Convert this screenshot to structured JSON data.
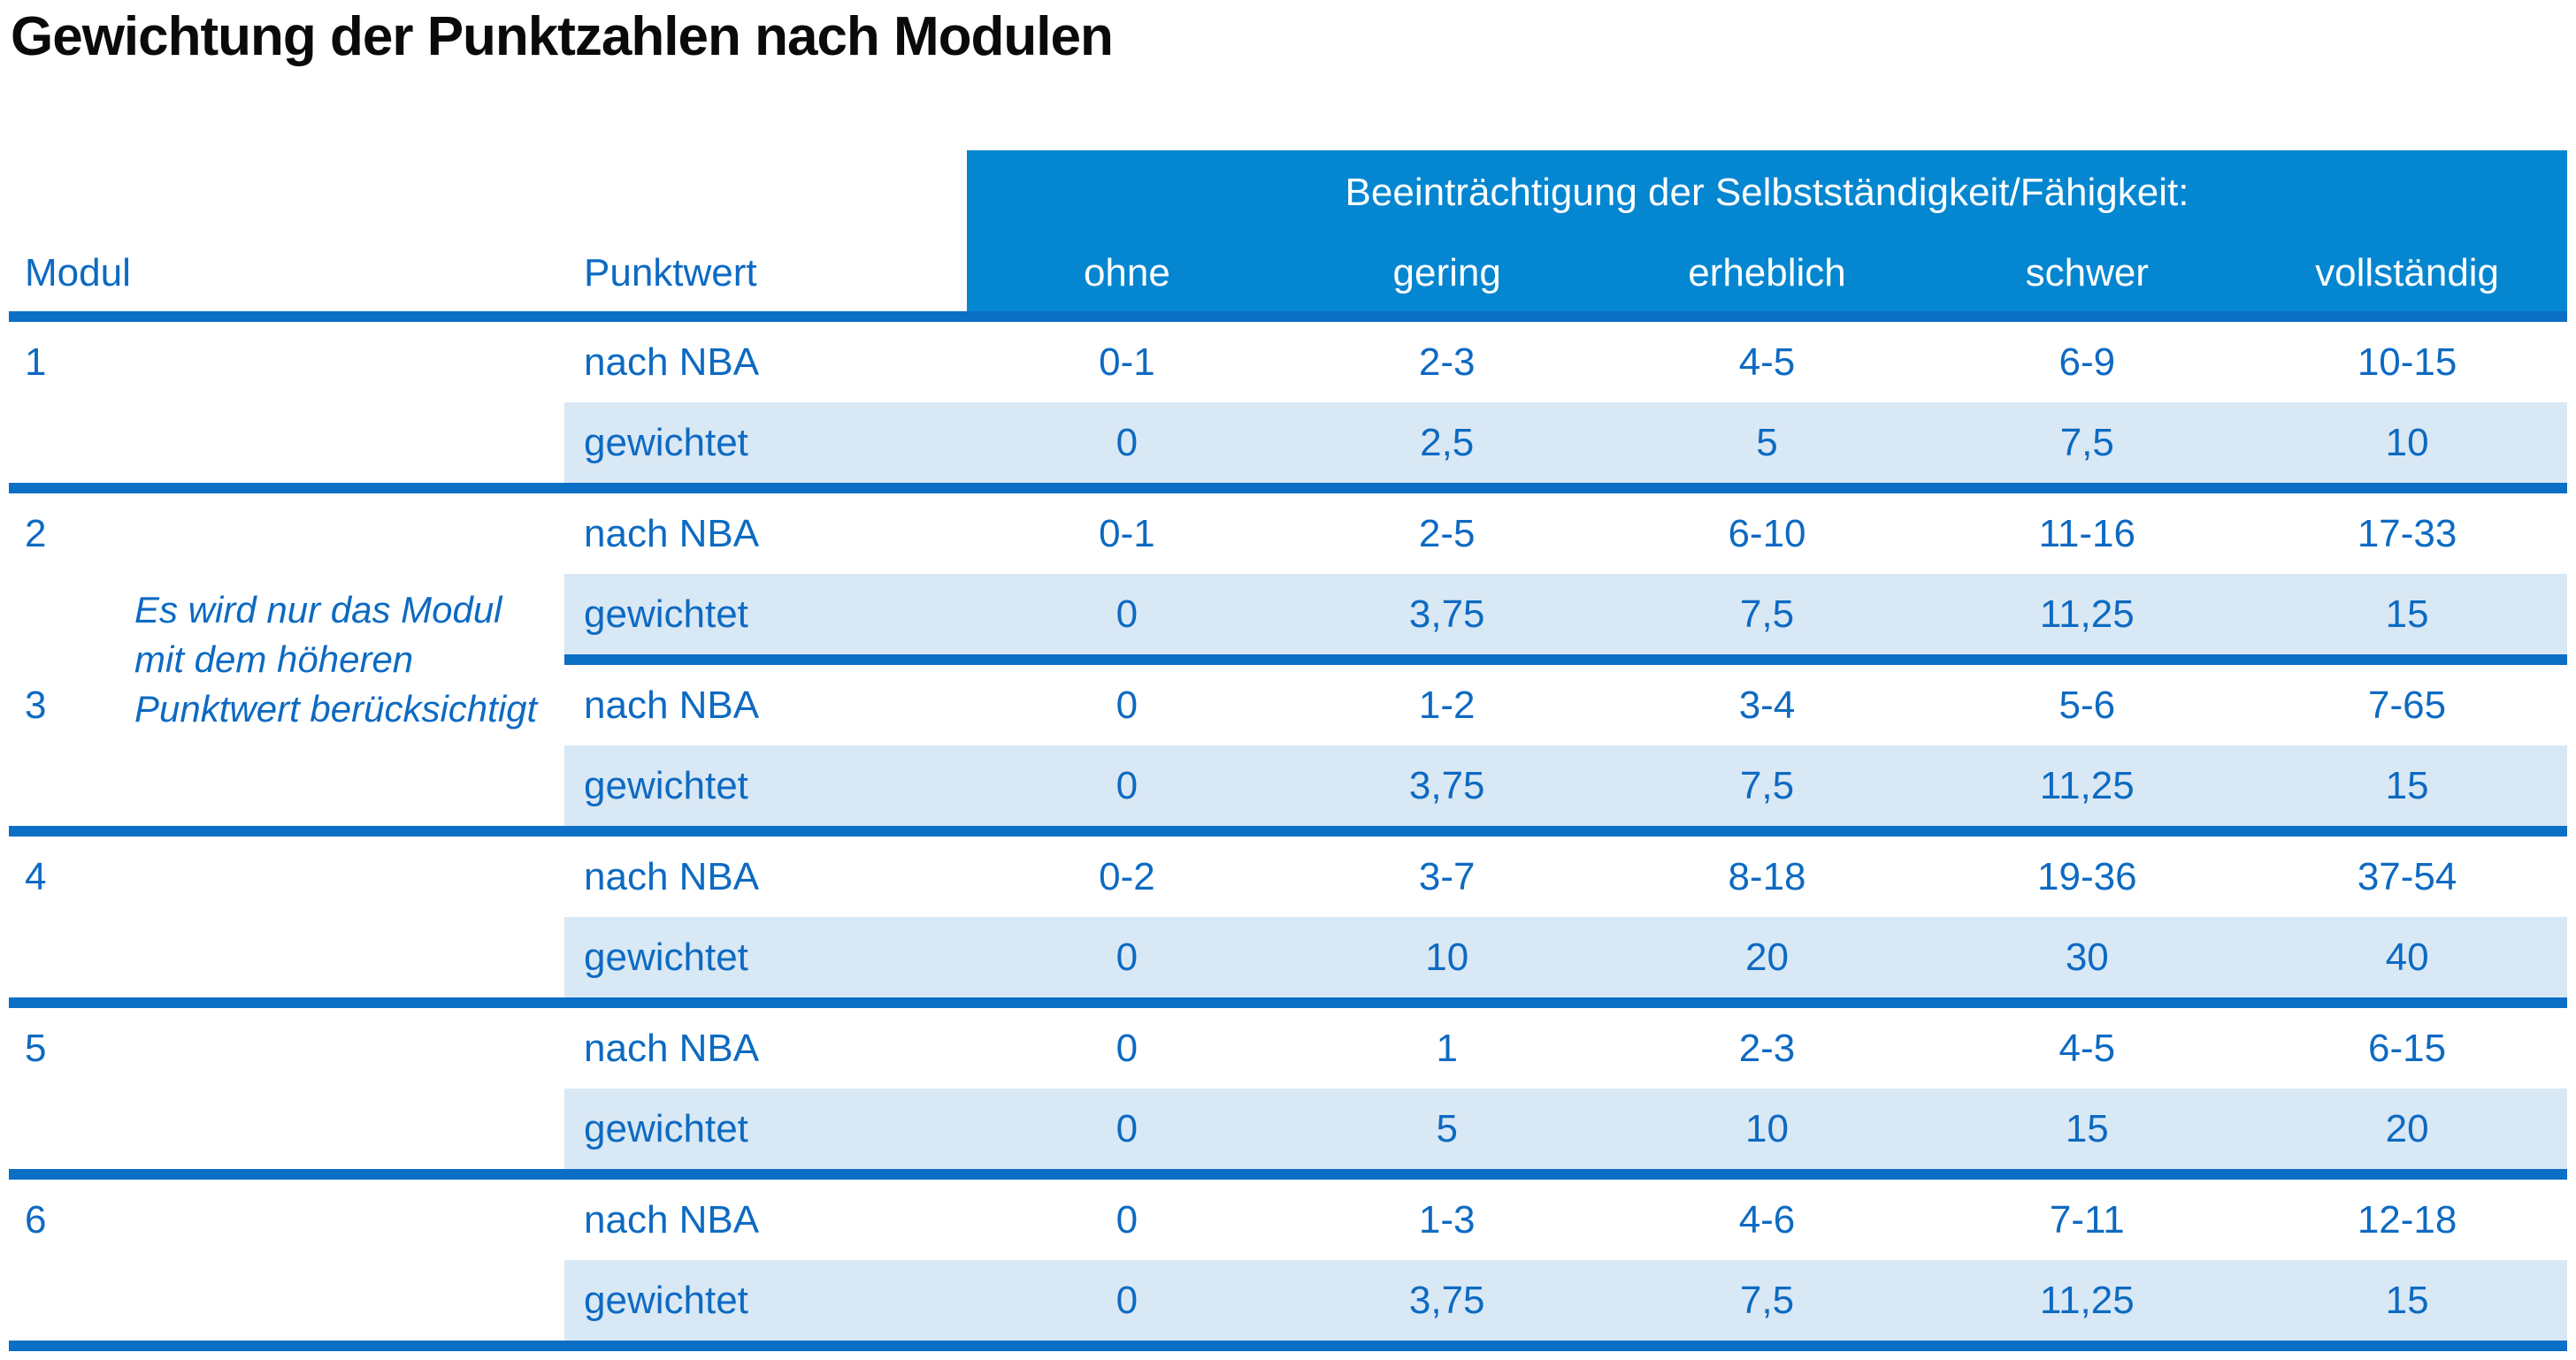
{
  "title": "Gewichtung der Punktzahlen nach Modulen",
  "table": {
    "headers": {
      "modul": "Modul",
      "punktwert": "Punktwert",
      "impairment": "Beeinträchtigung der Selbstständigkeit/Fähigkeit:",
      "levels": [
        "ohne",
        "gering",
        "erheblich",
        "schwer",
        "vollständig"
      ]
    },
    "labels": {
      "nba": "nach NBA",
      "weighted": "gewichtet"
    },
    "note": {
      "lines": [
        "Es wird nur das Modul",
        "mit dem höheren",
        "Punktwert berücksichtigt"
      ]
    },
    "modules": [
      {
        "id": "1",
        "nba": [
          "0-1",
          "2-3",
          "4-5",
          "6-9",
          "10-15"
        ],
        "weighted": [
          "0",
          "2,5",
          "5",
          "7,5",
          "10"
        ]
      },
      {
        "id": "2",
        "nba": [
          "0-1",
          "2-5",
          "6-10",
          "11-16",
          "17-33"
        ],
        "weighted": [
          "0",
          "3,75",
          "7,5",
          "11,25",
          "15"
        ]
      },
      {
        "id": "3",
        "nba": [
          "0",
          "1-2",
          "3-4",
          "5-6",
          "7-65"
        ],
        "weighted": [
          "0",
          "3,75",
          "7,5",
          "11,25",
          "15"
        ]
      },
      {
        "id": "4",
        "nba": [
          "0-2",
          "3-7",
          "8-18",
          "19-36",
          "37-54"
        ],
        "weighted": [
          "0",
          "10",
          "20",
          "30",
          "40"
        ]
      },
      {
        "id": "5",
        "nba": [
          "0",
          "1",
          "2-3",
          "4-5",
          "6-15"
        ],
        "weighted": [
          "0",
          "5",
          "10",
          "15",
          "20"
        ]
      },
      {
        "id": "6",
        "nba": [
          "0",
          "1-3",
          "4-6",
          "7-11",
          "12-18"
        ],
        "weighted": [
          "0",
          "3,75",
          "7,5",
          "11,25",
          "15"
        ]
      }
    ]
  },
  "colors": {
    "header_bg": "#0486d0",
    "divider": "#0b6fc6",
    "band": "#d9e8f5",
    "text_blue": "#0d6ac2",
    "title_color": "#0a0a0a"
  }
}
